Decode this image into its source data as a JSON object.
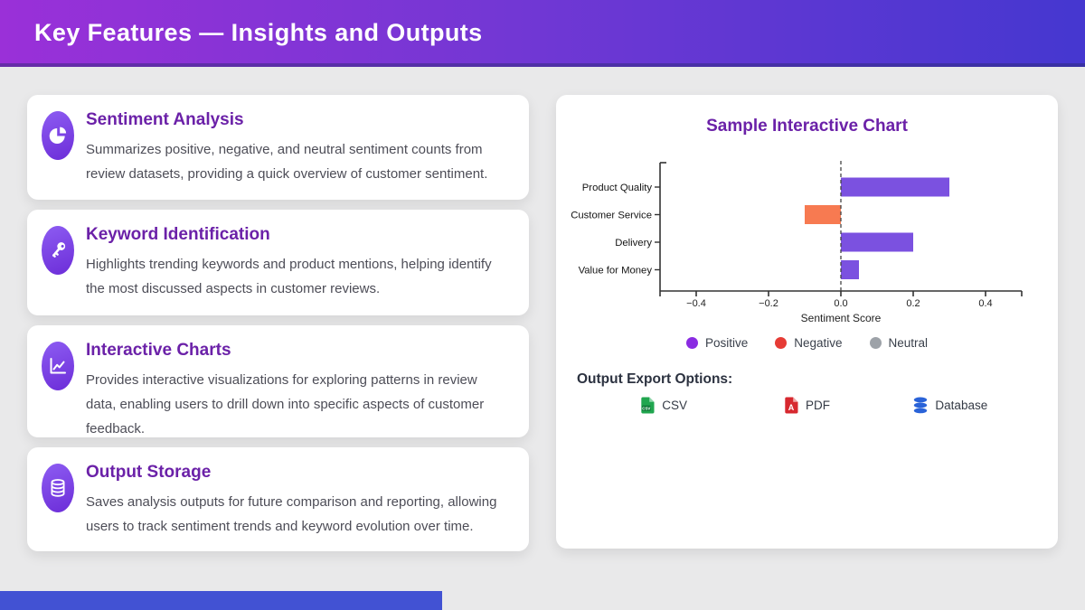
{
  "header": {
    "title": "Key Features — Insights and Outputs"
  },
  "features": [
    {
      "icon": "pie-chart-icon",
      "title": "Sentiment Analysis",
      "description": "Summarizes positive, negative, and neutral sentiment counts from review datasets, providing a quick overview of customer sentiment."
    },
    {
      "icon": "key-icon",
      "title": "Keyword Identification",
      "description": "Highlights trending keywords and product mentions, helping identify the most discussed aspects in customer reviews."
    },
    {
      "icon": "line-chart-icon",
      "title": "Interactive Charts",
      "description": "Provides interactive visualizations for exploring patterns in review data, enabling users to drill down into specific aspects of customer feedback."
    },
    {
      "icon": "database-icon",
      "title": "Output Storage",
      "description": "Saves analysis outputs for future comparison and reporting, allowing users to track sentiment trends and keyword evolution over time."
    }
  ],
  "chart_panel": {
    "title": "Sample Interactive Chart",
    "legend": [
      {
        "label": "Positive",
        "color": "#8a2be2"
      },
      {
        "label": "Negative",
        "color": "#e63b35"
      },
      {
        "label": "Neutral",
        "color": "#9da2a8"
      }
    ],
    "export_heading": "Output Export Options:",
    "export_options": [
      {
        "icon": "csv-file-icon",
        "label": "CSV"
      },
      {
        "icon": "pdf-file-icon",
        "label": "PDF"
      },
      {
        "icon": "database-icon",
        "label": "Database"
      }
    ]
  },
  "chart_data": {
    "type": "bar",
    "orientation": "horizontal",
    "title": "Sample Interactive Chart",
    "categories": [
      "Product Quality",
      "Customer Service",
      "Delivery",
      "Value for Money"
    ],
    "values": [
      0.3,
      -0.1,
      0.2,
      0.05
    ],
    "bar_colors": [
      "#7b51e0",
      "#f77a51",
      "#7b51e0",
      "#7b51e0"
    ],
    "xlabel": "Sentiment Score",
    "xticks": [
      -0.4,
      -0.2,
      0.0,
      0.2,
      0.4
    ],
    "xlim": [
      -0.5,
      0.5
    ],
    "zero_line": "dashed",
    "grid": false,
    "legend_position": "bottom"
  },
  "colors": {
    "header_gradient_left": "#9a30d8",
    "header_gradient_right": "#4537d0",
    "accent_purple": "#6b21a8",
    "icon_purple": "#7347dd",
    "footer_accent": "#4252d3",
    "csv_green": "#21a64f",
    "pdf_red": "#d7282f",
    "database_blue": "#2a63d8"
  }
}
